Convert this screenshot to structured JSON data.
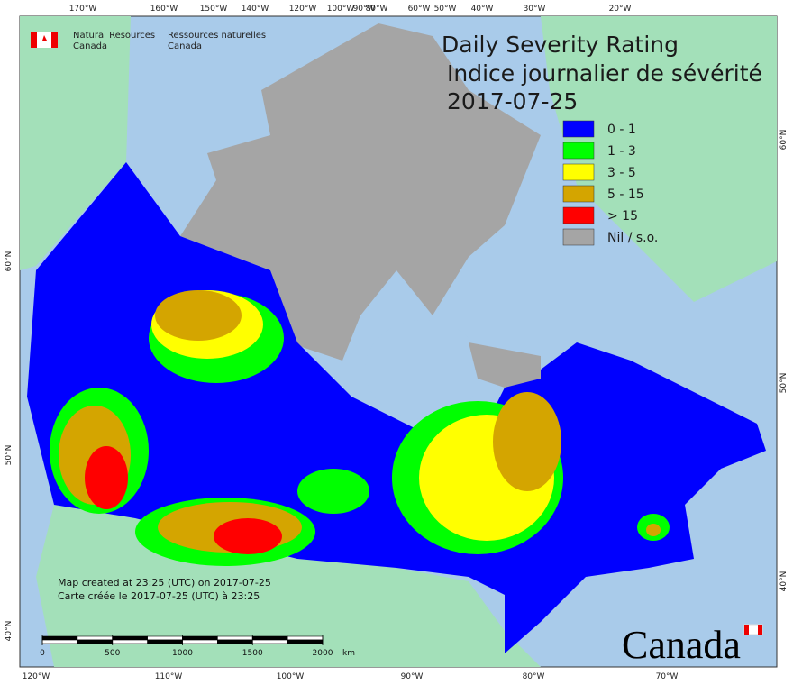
{
  "header": {
    "agency_en": [
      "Natural Resources",
      "Canada"
    ],
    "agency_fr": [
      "Ressources naturelles",
      "Canada"
    ]
  },
  "title": {
    "lines": [
      "Daily Severity Rating",
      "Indice journalier de sévérité",
      "2017-07-25"
    ]
  },
  "legend": [
    {
      "label": "0 - 1",
      "color": "#0000ff"
    },
    {
      "label": "1 - 3",
      "color": "#00ff00"
    },
    {
      "label": "3 - 5",
      "color": "#ffff00"
    },
    {
      "label": "5 - 15",
      "color": "#d4a500"
    },
    {
      "label": "> 15",
      "color": "#ff0000"
    },
    {
      "label": "Nil / s.o.",
      "color": "#a5a5a5"
    }
  ],
  "graticule": {
    "top": [
      "170°W",
      "160°W",
      "150°W",
      "140°W",
      "120°W",
      "100°W",
      "90°W",
      "80°W",
      "60°W",
      "50°W",
      "40°W",
      "30°W",
      "20°W"
    ],
    "bottom": [
      "120°W",
      "110°W",
      "100°W",
      "90°W",
      "80°W",
      "70°W"
    ],
    "left": [
      "60°N",
      "50°N",
      "40°N"
    ],
    "right": [
      "60°N",
      "50°N",
      "40°N"
    ]
  },
  "notes": [
    "Map created at 23:25 (UTC) on 2017-07-25",
    "Carte créée le 2017-07-25 (UTC) à 23:25"
  ],
  "scale_bar": {
    "ticks": [
      0,
      500,
      1000,
      1500,
      2000
    ],
    "unit": "km"
  },
  "wordmark": "Canada"
}
